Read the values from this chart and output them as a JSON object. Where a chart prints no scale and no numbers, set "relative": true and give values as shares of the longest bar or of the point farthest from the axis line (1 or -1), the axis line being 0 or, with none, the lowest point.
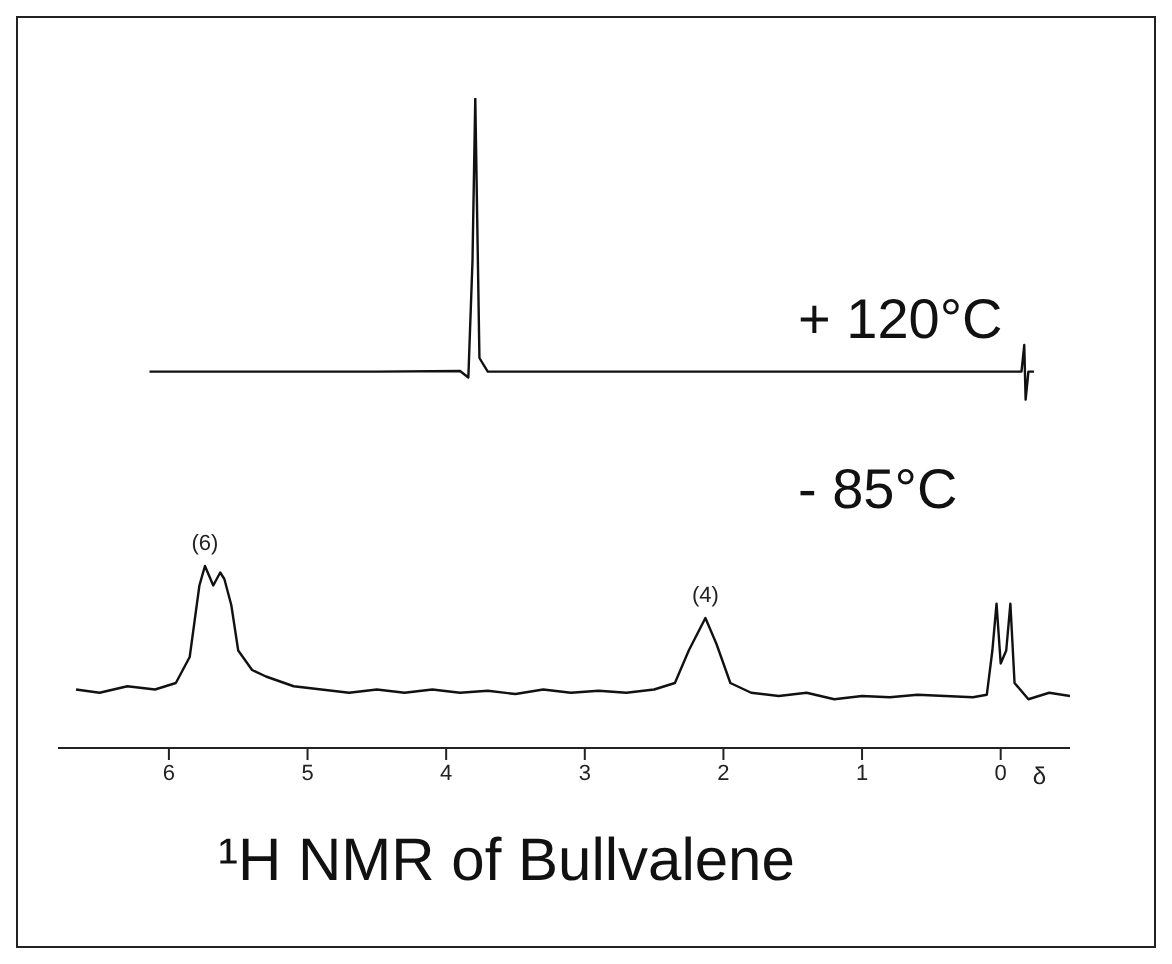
{
  "chart_data": {
    "type": "line",
    "title": "¹H NMR of Bullvalene",
    "xlabel": "δ",
    "relative": true,
    "xlim": [
      6.8,
      -0.5
    ],
    "xticks": [
      6,
      5,
      4,
      3,
      2,
      1,
      0
    ],
    "grid": false,
    "legend": false,
    "marker": "none",
    "line_style": "solid",
    "series": [
      {
        "name": "+ 120°C",
        "color": "#111111",
        "x": [
          6.14,
          4.5,
          3.9,
          3.84,
          3.81,
          3.79,
          3.76,
          3.7,
          1,
          -0.15,
          -0.17,
          -0.18,
          -0.2,
          -0.24
        ],
        "values": [
          0.579,
          0.579,
          0.58,
          0.57,
          0.75,
          1.0,
          0.6,
          0.579,
          0.579,
          0.579,
          0.62,
          0.536,
          0.579,
          0.579
        ]
      },
      {
        "name": "- 85°C",
        "color": "#111111",
        "x": [
          6.67,
          6.5,
          6.3,
          6.1,
          5.95,
          5.85,
          5.78,
          5.74,
          5.68,
          5.63,
          5.6,
          5.55,
          5.5,
          5.4,
          5.3,
          5.1,
          4.9,
          4.7,
          4.5,
          4.3,
          4.1,
          3.9,
          3.7,
          3.5,
          3.3,
          3.1,
          2.9,
          2.7,
          2.5,
          2.35,
          2.25,
          2.13,
          2.05,
          1.95,
          1.8,
          1.6,
          1.4,
          1.2,
          1.0,
          0.8,
          0.6,
          0.4,
          0.2,
          0.1,
          0.06,
          0.03,
          0.0,
          -0.04,
          -0.07,
          -0.1,
          -0.2,
          -0.35,
          -0.5
        ],
        "values": [
          0.09,
          0.085,
          0.095,
          0.09,
          0.1,
          0.14,
          0.25,
          0.28,
          0.25,
          0.27,
          0.26,
          0.22,
          0.15,
          0.12,
          0.11,
          0.095,
          0.09,
          0.085,
          0.09,
          0.085,
          0.09,
          0.085,
          0.088,
          0.083,
          0.09,
          0.085,
          0.088,
          0.085,
          0.09,
          0.1,
          0.15,
          0.2,
          0.16,
          0.1,
          0.085,
          0.08,
          0.085,
          0.075,
          0.08,
          0.078,
          0.082,
          0.08,
          0.078,
          0.082,
          0.15,
          0.222,
          0.13,
          0.15,
          0.222,
          0.1,
          0.075,
          0.085,
          0.08
        ]
      }
    ],
    "annotations": [
      {
        "text": "(6)",
        "x": 5.74,
        "y": 0.28
      },
      {
        "text": "(4)",
        "x": 2.13,
        "y": 0.2
      }
    ]
  }
}
